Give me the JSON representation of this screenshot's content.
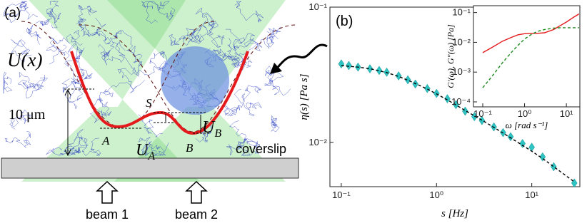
{
  "panel_a": {
    "label": "(a)",
    "potential_label": "U(x)",
    "scale_label": "10 μm",
    "barrier_label": "S",
    "well_a_label": "A",
    "well_b_label": "B",
    "depth_a": {
      "symbol": "U",
      "subscript": "A"
    },
    "depth_b": {
      "symbol": "U",
      "subscript": "B"
    },
    "coverslip_label": "coverslip",
    "beam_1_label": "beam 1",
    "beam_2_label": "beam 2"
  },
  "chart_data": [
    {
      "type": "scatter",
      "panel_label": "(b)",
      "xlabel": "s [Hz]",
      "ylabel": "η(s) [Pa s]",
      "xscale": "log",
      "yscale": "log",
      "xlim": [
        0.076,
        32
      ],
      "ylim": [
        0.0047,
        0.1
      ],
      "xticks": [
        {
          "value": 0.1,
          "label": "10⁻¹"
        },
        {
          "value": 1,
          "label": "10⁰"
        },
        {
          "value": 10,
          "label": "10¹"
        }
      ],
      "yticks": [
        {
          "value": 0.1,
          "label": "10⁻¹"
        },
        {
          "value": 0.01,
          "label": "10⁻²"
        }
      ],
      "x": [
        0.1,
        0.12,
        0.15,
        0.2,
        0.25,
        0.3,
        0.4,
        0.5,
        0.6,
        0.8,
        1.0,
        1.3,
        1.6,
        2,
        2.5,
        3,
        4,
        5,
        6,
        8,
        10,
        13,
        17,
        28
      ],
      "series": [
        {
          "color": "#2ec4c4",
          "marker": "diamond",
          "values": [
            0.038,
            0.037,
            0.036,
            0.035,
            0.034,
            0.033,
            0.031,
            0.029,
            0.027,
            0.025,
            0.023,
            0.021,
            0.019,
            0.017,
            0.0155,
            0.0145,
            0.013,
            0.0118,
            0.011,
            0.0098,
            0.0092,
            0.0078,
            0.0066,
            0.005
          ]
        },
        {
          "color": "#000000",
          "dash": true,
          "values": [
            0.037,
            0.0365,
            0.036,
            0.035,
            0.0338,
            0.0328,
            0.0307,
            0.0288,
            0.0272,
            0.0248,
            0.0228,
            0.0206,
            0.0189,
            0.0172,
            0.0157,
            0.0146,
            0.0129,
            0.0117,
            0.0108,
            0.0095,
            0.0086,
            0.0076,
            0.0066,
            0.0051
          ]
        }
      ]
    },
    {
      "type": "line",
      "xlabel": "ω [rad s⁻¹]",
      "ylabel": "G′(ω), G″(ω) [Pa]",
      "xscale": "log",
      "yscale": "log",
      "xlim": [
        0.06,
        21
      ],
      "ylim": [
        6.8e-05,
        0.17
      ],
      "xticks": [
        {
          "value": 0.1,
          "label": "10⁻¹"
        },
        {
          "value": 1,
          "label": "10⁰"
        },
        {
          "value": 10,
          "label": "10¹"
        }
      ],
      "yticks": [
        {
          "value": 0.1,
          "label": "10⁻¹"
        },
        {
          "value": 0.01,
          "label": "10⁻²"
        },
        {
          "value": 0.001,
          "label": "10⁻³"
        },
        {
          "value": 0.0001,
          "label": "10⁻⁴"
        }
      ],
      "x": [
        0.1,
        0.15,
        0.2,
        0.3,
        0.5,
        0.7,
        1,
        1.5,
        2,
        3,
        5,
        7,
        10,
        15,
        20
      ],
      "series": [
        {
          "color": "#e41a1c",
          "values": [
            0.0045,
            0.0062,
            0.0078,
            0.011,
            0.015,
            0.018,
            0.0195,
            0.02,
            0.02,
            0.021,
            0.027,
            0.036,
            0.048,
            0.07,
            0.09
          ]
        },
        {
          "color": "#1a8a1a",
          "dash": true,
          "values": [
            0.0003,
            0.0006,
            0.001,
            0.0021,
            0.0048,
            0.008,
            0.013,
            0.019,
            0.023,
            0.027,
            0.03,
            0.031,
            0.031,
            0.031,
            0.031
          ]
        }
      ]
    }
  ]
}
